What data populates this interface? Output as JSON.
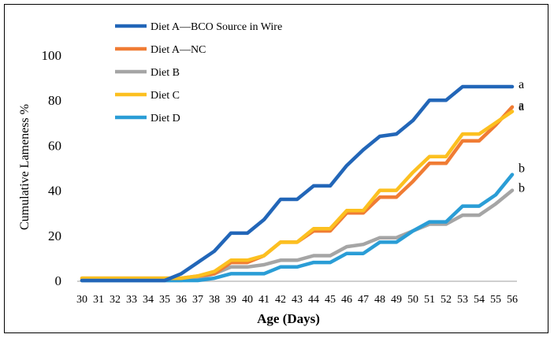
{
  "chart_data": {
    "type": "line",
    "title": "",
    "xlabel": "Age (Days)",
    "ylabel": "Cumulative Lameness %",
    "ylim": [
      0,
      100
    ],
    "yticks": [
      0,
      20,
      40,
      60,
      80,
      100
    ],
    "grid": false,
    "legend_position": "top-left",
    "categories": [
      30,
      31,
      32,
      33,
      34,
      35,
      36,
      37,
      38,
      39,
      40,
      41,
      42,
      43,
      44,
      45,
      46,
      47,
      48,
      49,
      50,
      51,
      52,
      53,
      54,
      55,
      56
    ],
    "series": [
      {
        "name": "Diet A—BCO Source in Wire",
        "color": "#2266b8",
        "values": [
          0,
          0,
          0,
          0,
          0,
          0,
          3,
          8,
          13,
          21,
          21,
          27,
          36,
          36,
          42,
          42,
          51,
          58,
          64,
          65,
          71,
          80,
          80,
          86,
          86,
          86,
          86
        ],
        "end_label": "a"
      },
      {
        "name": "Diet A—NC",
        "color": "#f07c34",
        "values": [
          1,
          1,
          1,
          1,
          1,
          1,
          1,
          2,
          3,
          8,
          8,
          11,
          17,
          17,
          22,
          22,
          30,
          30,
          37,
          37,
          44,
          52,
          52,
          62,
          62,
          69,
          77
        ],
        "end_label": "a"
      },
      {
        "name": "Diet B",
        "color": "#a5a5a5",
        "values": [
          0,
          0,
          0,
          0,
          0,
          0,
          0,
          1,
          3,
          6,
          6,
          7,
          9,
          9,
          11,
          11,
          15,
          16,
          19,
          19,
          22,
          25,
          25,
          29,
          29,
          34,
          40
        ],
        "end_label": "b"
      },
      {
        "name": "Diet C",
        "color": "#fcc020",
        "values": [
          1,
          1,
          1,
          1,
          1,
          1,
          1,
          2,
          4,
          9,
          9,
          11,
          17,
          17,
          23,
          23,
          31,
          31,
          40,
          40,
          48,
          55,
          55,
          65,
          65,
          70,
          75
        ],
        "end_label": "a"
      },
      {
        "name": "Diet D",
        "color": "#2a9dd6",
        "values": [
          0,
          0,
          0,
          0,
          0,
          0,
          0,
          0,
          1,
          3,
          3,
          3,
          6,
          6,
          8,
          8,
          12,
          12,
          17,
          17,
          22,
          26,
          26,
          33,
          33,
          38,
          47
        ],
        "end_label": "b"
      }
    ]
  }
}
